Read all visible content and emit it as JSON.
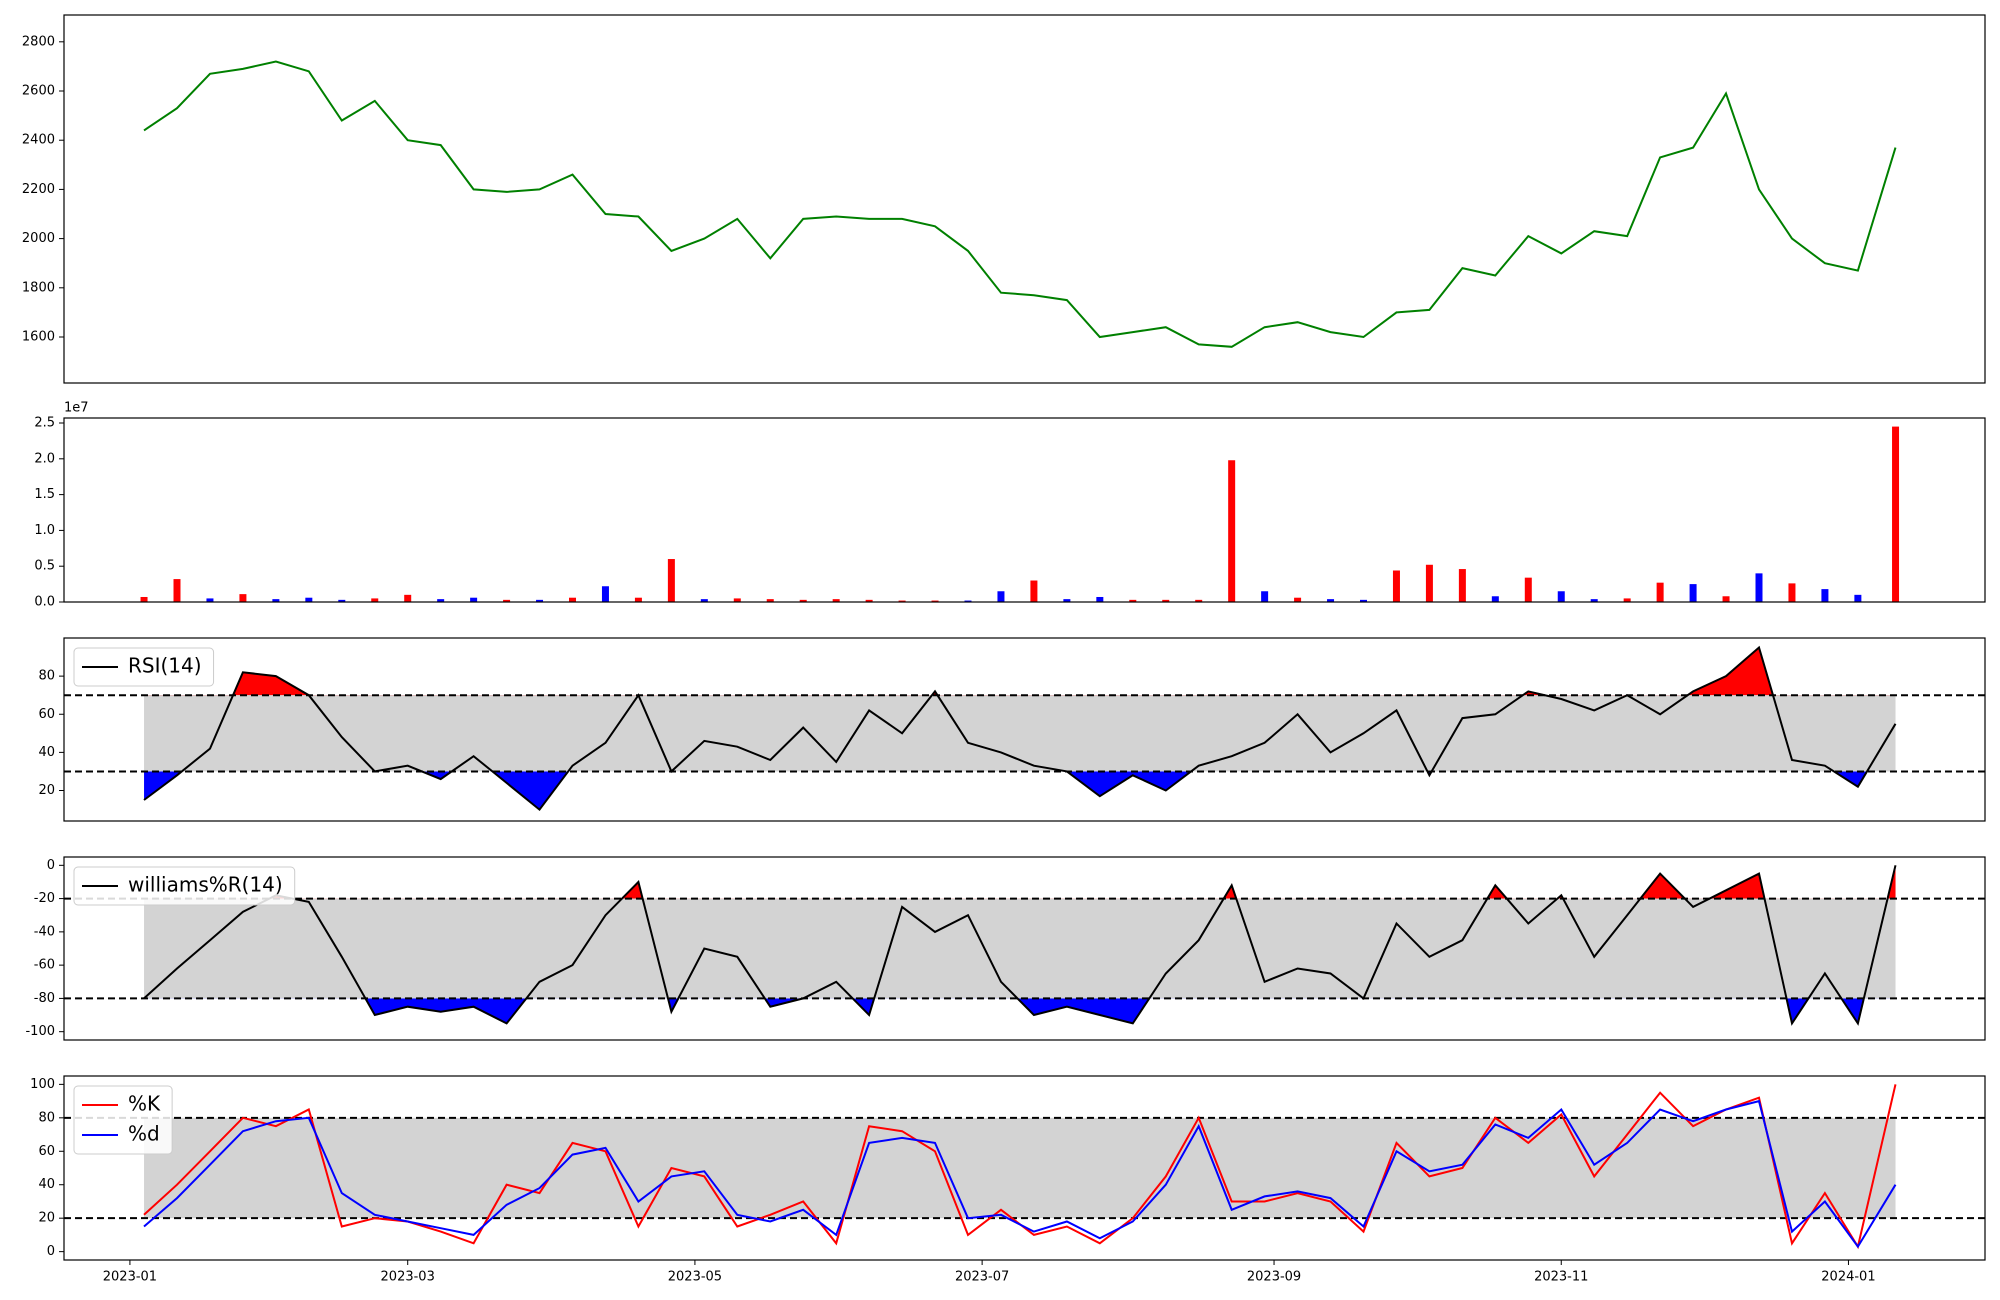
{
  "chart_data": [
    {
      "type": "line",
      "x": [
        3,
        10,
        17,
        24,
        31,
        38,
        45,
        52,
        59,
        66,
        73,
        80,
        87,
        94,
        101,
        108,
        115,
        122,
        129,
        136,
        143,
        150,
        157,
        164,
        171,
        178,
        185,
        192,
        199,
        206,
        213,
        220,
        227,
        234,
        241,
        248,
        255,
        262,
        269,
        276,
        283,
        290,
        297,
        304,
        311,
        318,
        325,
        332,
        339,
        346,
        353,
        360,
        367,
        375
      ],
      "xlim": [
        -14,
        394
      ],
      "ylim": [
        1413,
        2909
      ],
      "yticks": [
        1600,
        1800,
        2000,
        2200,
        2400,
        2600,
        2800
      ],
      "series": [
        {
          "color": "#008000",
          "values": [
            2440,
            2530,
            2670,
            2690,
            2720,
            2680,
            2480,
            2560,
            2400,
            2380,
            2200,
            2190,
            2200,
            2260,
            2100,
            2090,
            1950,
            2000,
            2080,
            1920,
            2080,
            2090,
            2080,
            2080,
            2050,
            1950,
            1780,
            1770,
            1750,
            1600,
            1620,
            1640,
            1570,
            1560,
            1640,
            1660,
            1620,
            1600,
            1700,
            1710,
            1880,
            1850,
            2010,
            1940,
            2030,
            2010,
            2330,
            2370,
            2590,
            2200,
            2000,
            1900,
            1870,
            2370
          ]
        }
      ]
    },
    {
      "type": "bar",
      "x": [
        3,
        10,
        17,
        24,
        31,
        38,
        45,
        52,
        59,
        66,
        73,
        80,
        87,
        94,
        101,
        108,
        115,
        122,
        129,
        136,
        143,
        150,
        157,
        164,
        171,
        178,
        185,
        192,
        199,
        206,
        213,
        220,
        227,
        234,
        241,
        248,
        255,
        262,
        269,
        276,
        283,
        290,
        297,
        304,
        311,
        318,
        325,
        332,
        339,
        346,
        353,
        360,
        367,
        375
      ],
      "xlim": [
        -14,
        394
      ],
      "ylim": [
        0,
        25700000
      ],
      "y_offset_label": "1e7",
      "yticks": [
        {
          "value": 0,
          "label": "0.0"
        },
        {
          "value": 5000000,
          "label": "0.5"
        },
        {
          "value": 10000000,
          "label": "1.0"
        },
        {
          "value": 15000000,
          "label": "1.5"
        },
        {
          "value": 20000000,
          "label": "2.0"
        },
        {
          "value": 25000000,
          "label": "2.5"
        }
      ],
      "values": [
        700000,
        3200000,
        500000,
        1100000,
        400000,
        600000,
        300000,
        500000,
        1000000,
        400000,
        600000,
        300000,
        300000,
        600000,
        2200000,
        600000,
        6000000,
        400000,
        500000,
        400000,
        300000,
        400000,
        300000,
        200000,
        200000,
        200000,
        1500000,
        3000000,
        400000,
        700000,
        300000,
        300000,
        300000,
        19800000,
        1500000,
        600000,
        400000,
        300000,
        4400000,
        5200000,
        4600000,
        800000,
        3400000,
        1500000,
        400000,
        500000,
        2700000,
        2500000,
        800000,
        4000000,
        2600000,
        1800000,
        1000000,
        24500000
      ],
      "colors": [
        "#ff0000",
        "#ff0000",
        "#0000ff",
        "#ff0000",
        "#0000ff",
        "#0000ff",
        "#0000ff",
        "#ff0000",
        "#ff0000",
        "#0000ff",
        "#0000ff",
        "#ff0000",
        "#0000ff",
        "#ff0000",
        "#0000ff",
        "#ff0000",
        "#ff0000",
        "#0000ff",
        "#ff0000",
        "#ff0000",
        "#ff0000",
        "#ff0000",
        "#ff0000",
        "#ff0000",
        "#ff0000",
        "#0000ff",
        "#0000ff",
        "#ff0000",
        "#0000ff",
        "#0000ff",
        "#ff0000",
        "#ff0000",
        "#ff0000",
        "#ff0000",
        "#0000ff",
        "#ff0000",
        "#0000ff",
        "#0000ff",
        "#ff0000",
        "#ff0000",
        "#ff0000",
        "#0000ff",
        "#ff0000",
        "#0000ff",
        "#0000ff",
        "#ff0000",
        "#ff0000",
        "#0000ff",
        "#ff0000",
        "#0000ff",
        "#ff0000",
        "#0000ff",
        "#0000ff",
        "#ff0000"
      ]
    },
    {
      "type": "line",
      "x": [
        3,
        10,
        17,
        24,
        31,
        38,
        45,
        52,
        59,
        66,
        73,
        80,
        87,
        94,
        101,
        108,
        115,
        122,
        129,
        136,
        143,
        150,
        157,
        164,
        171,
        178,
        185,
        192,
        199,
        206,
        213,
        220,
        227,
        234,
        241,
        248,
        255,
        262,
        269,
        276,
        283,
        290,
        297,
        304,
        311,
        318,
        325,
        332,
        339,
        346,
        353,
        360,
        367,
        375
      ],
      "xlim": [
        -14,
        394
      ],
      "ylim": [
        4,
        100
      ],
      "yticks": [
        20,
        40,
        60,
        80
      ],
      "hlines": [
        30,
        70
      ],
      "band_color": "#d3d3d3",
      "above_color": "#ff0000",
      "below_color": "#0000ff",
      "legend": "upper left",
      "series": [
        {
          "name": "RSI(14)",
          "color": "#000000",
          "values": [
            15,
            28,
            42,
            82,
            80,
            70,
            48,
            30,
            33,
            26,
            38,
            24,
            10,
            33,
            45,
            70,
            30,
            46,
            43,
            36,
            53,
            35,
            62,
            50,
            72,
            45,
            40,
            33,
            30,
            17,
            28,
            20,
            33,
            38,
            45,
            60,
            40,
            50,
            62,
            28,
            58,
            60,
            72,
            68,
            62,
            70,
            60,
            72,
            80,
            95,
            36,
            33,
            22,
            55
          ]
        }
      ]
    },
    {
      "type": "line",
      "x": [
        3,
        10,
        17,
        24,
        31,
        38,
        45,
        52,
        59,
        66,
        73,
        80,
        87,
        94,
        101,
        108,
        115,
        122,
        129,
        136,
        143,
        150,
        157,
        164,
        171,
        178,
        185,
        192,
        199,
        206,
        213,
        220,
        227,
        234,
        241,
        248,
        255,
        262,
        269,
        276,
        283,
        290,
        297,
        304,
        311,
        318,
        325,
        332,
        339,
        346,
        353,
        360,
        367,
        375
      ],
      "xlim": [
        -14,
        394
      ],
      "ylim": [
        -105,
        5
      ],
      "yticks": [
        -100,
        -80,
        -60,
        -40,
        -20,
        0
      ],
      "hlines": [
        -80,
        -20
      ],
      "band_color": "#d3d3d3",
      "above_color": "#ff0000",
      "below_color": "#0000ff",
      "legend": "upper left",
      "series": [
        {
          "name": "williams%R(14)",
          "color": "#000000",
          "values": [
            -80,
            -62,
            -45,
            -28,
            -18,
            -22,
            -55,
            -90,
            -85,
            -88,
            -85,
            -95,
            -70,
            -60,
            -30,
            -10,
            -88,
            -50,
            -55,
            -85,
            -80,
            -70,
            -90,
            -25,
            -40,
            -30,
            -70,
            -90,
            -85,
            -90,
            -95,
            -65,
            -45,
            -12,
            -70,
            -62,
            -65,
            -80,
            -35,
            -55,
            -45,
            -12,
            -35,
            -18,
            -55,
            -30,
            -5,
            -25,
            -15,
            -5,
            -95,
            -65,
            -95,
            0
          ]
        }
      ]
    },
    {
      "type": "line",
      "x": [
        3,
        10,
        17,
        24,
        31,
        38,
        45,
        52,
        59,
        66,
        73,
        80,
        87,
        94,
        101,
        108,
        115,
        122,
        129,
        136,
        143,
        150,
        157,
        164,
        171,
        178,
        185,
        192,
        199,
        206,
        213,
        220,
        227,
        234,
        241,
        248,
        255,
        262,
        269,
        276,
        283,
        290,
        297,
        304,
        311,
        318,
        325,
        332,
        339,
        346,
        353,
        360,
        367,
        375
      ],
      "xlim": [
        -14,
        394
      ],
      "ylim": [
        -5,
        105
      ],
      "yticks": [
        0,
        20,
        40,
        60,
        80,
        100
      ],
      "hlines": [
        20,
        80
      ],
      "band_color": "#d3d3d3",
      "legend": "upper left",
      "xticks": [
        {
          "value": 0,
          "label": "2023-01"
        },
        {
          "value": 59,
          "label": "2023-03"
        },
        {
          "value": 120,
          "label": "2023-05"
        },
        {
          "value": 181,
          "label": "2023-07"
        },
        {
          "value": 243,
          "label": "2023-09"
        },
        {
          "value": 304,
          "label": "2023-11"
        },
        {
          "value": 365,
          "label": "2024-01"
        }
      ],
      "series": [
        {
          "name": "%K",
          "color": "#ff0000",
          "values": [
            22,
            40,
            60,
            80,
            75,
            85,
            15,
            20,
            18,
            12,
            5,
            40,
            35,
            65,
            60,
            15,
            50,
            45,
            15,
            22,
            30,
            5,
            75,
            72,
            60,
            10,
            25,
            10,
            15,
            5,
            20,
            45,
            80,
            30,
            30,
            35,
            30,
            12,
            65,
            45,
            50,
            80,
            65,
            82,
            45,
            70,
            95,
            75,
            85,
            92,
            5,
            35,
            3,
            100
          ]
        },
        {
          "name": "%d",
          "color": "#0000ff",
          "values": [
            15,
            32,
            52,
            72,
            78,
            80,
            35,
            22,
            18,
            14,
            10,
            28,
            38,
            58,
            62,
            30,
            45,
            48,
            22,
            18,
            25,
            10,
            65,
            68,
            65,
            20,
            22,
            12,
            18,
            8,
            18,
            40,
            75,
            25,
            33,
            36,
            32,
            15,
            60,
            48,
            52,
            76,
            68,
            85,
            52,
            65,
            85,
            78,
            85,
            90,
            12,
            30,
            3,
            40
          ]
        }
      ]
    }
  ]
}
